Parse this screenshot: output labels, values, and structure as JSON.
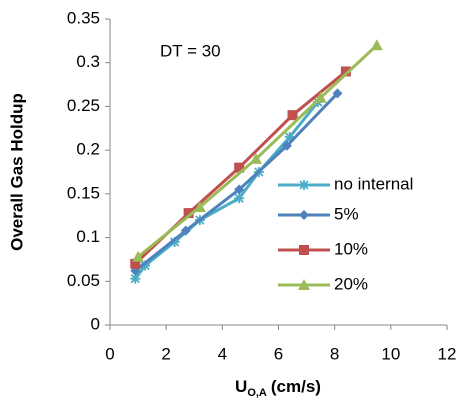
{
  "chart_data": {
    "type": "line",
    "annotation": "DT = 30",
    "xlabel": {
      "main": "U",
      "sub": "O,A",
      "unit": "(cm/s)"
    },
    "ylabel": "Overall Gas Holdup",
    "xlim": [
      0,
      12
    ],
    "xticks": [
      0,
      2,
      4,
      6,
      8,
      10,
      12
    ],
    "ylim": [
      0,
      0.35
    ],
    "yticks": [
      0,
      0.05,
      0.1,
      0.15,
      0.2,
      0.25,
      0.3,
      0.35
    ],
    "grid": false,
    "legend": "right",
    "series": [
      {
        "name": "no internal",
        "color": "#4bacc6",
        "marker": "star",
        "x": [
          0.9,
          1.25,
          2.3,
          3.2,
          4.6,
          5.3,
          6.4,
          7.4
        ],
        "values": [
          0.053,
          0.068,
          0.095,
          0.12,
          0.145,
          0.175,
          0.215,
          0.255
        ]
      },
      {
        "name": "5%",
        "color": "#4f81bd",
        "marker": "diamond",
        "x": [
          0.9,
          2.7,
          4.6,
          6.3,
          8.1
        ],
        "values": [
          0.062,
          0.108,
          0.155,
          0.205,
          0.265
        ]
      },
      {
        "name": "10%",
        "color": "#c0504d",
        "marker": "square",
        "x": [
          0.9,
          2.8,
          4.6,
          6.5,
          8.4
        ],
        "values": [
          0.07,
          0.128,
          0.18,
          0.24,
          0.29
        ]
      },
      {
        "name": "20%",
        "color": "#9bbb59",
        "marker": "triangle",
        "x": [
          1.0,
          3.2,
          5.2,
          7.5,
          9.5
        ],
        "values": [
          0.078,
          0.135,
          0.19,
          0.26,
          0.32
        ]
      }
    ]
  }
}
